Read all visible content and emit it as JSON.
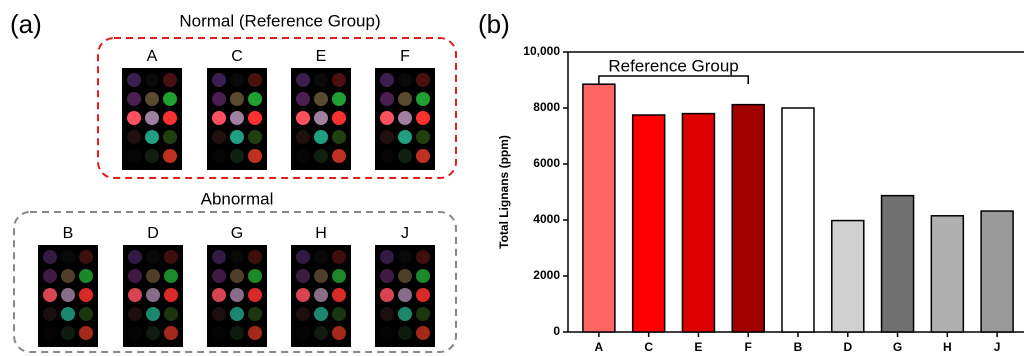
{
  "panel_a": {
    "label": "(a)",
    "normal": {
      "title": "Normal (Reference Group)",
      "samples": [
        "A",
        "C",
        "E",
        "F"
      ]
    },
    "abnormal": {
      "title": "Abnormal",
      "samples": [
        "B",
        "D",
        "G",
        "H",
        "J"
      ]
    }
  },
  "chart_data": {
    "type": "bar",
    "panel_label": "(b)",
    "y_label": "Total Lignans (ppm)",
    "annotation": "Reference Group",
    "categories": [
      "A",
      "C",
      "E",
      "F",
      "B",
      "D",
      "G",
      "H",
      "J"
    ],
    "values": [
      8850,
      7750,
      7800,
      8120,
      8000,
      3980,
      4870,
      4150,
      4320
    ],
    "colors": [
      "#ff6666",
      "#ff0000",
      "#dd0000",
      "#a00000",
      "#ffffff",
      "#d0d0d0",
      "#707070",
      "#b0b0b0",
      "#999999"
    ],
    "ylim": [
      0,
      10000
    ],
    "yticks": [
      0,
      2000,
      4000,
      6000,
      8000,
      {
        "value": 10000,
        "label": "10,000"
      }
    ]
  }
}
